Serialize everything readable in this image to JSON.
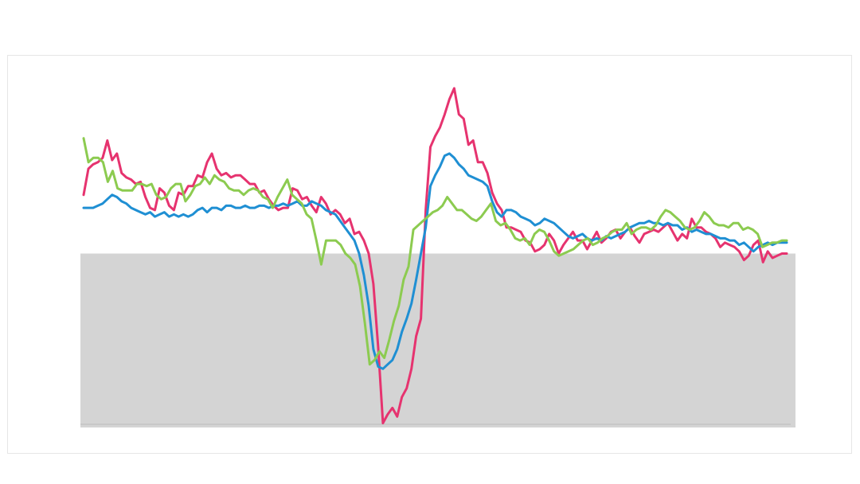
{
  "chart_data": {
    "type": "line",
    "title": "",
    "xlabel": "",
    "ylabel": "",
    "grid": false,
    "legend": "none",
    "band": {
      "from": -4,
      "to": 0,
      "color": "#d4d4d4",
      "baseline_color": "#bdbdbd"
    },
    "ylim": [
      -4,
      4
    ],
    "series": [
      {
        "color": "#e6336f",
        "values": [
          1.35,
          1.95,
          2.05,
          2.1,
          2.2,
          2.6,
          2.15,
          2.3,
          1.85,
          1.75,
          1.7,
          1.6,
          1.65,
          1.3,
          1.05,
          1.0,
          1.5,
          1.4,
          1.1,
          1.0,
          1.4,
          1.35,
          1.55,
          1.55,
          1.8,
          1.75,
          2.1,
          2.3,
          1.95,
          1.8,
          1.85,
          1.75,
          1.8,
          1.8,
          1.7,
          1.6,
          1.6,
          1.4,
          1.45,
          1.25,
          1.1,
          1.0,
          1.05,
          1.05,
          1.5,
          1.45,
          1.25,
          1.3,
          1.1,
          0.95,
          1.3,
          1.15,
          0.9,
          1.0,
          0.9,
          0.7,
          0.8,
          0.45,
          0.5,
          0.3,
          0.0,
          -0.7,
          -2.15,
          -3.9,
          -3.7,
          -3.55,
          -3.75,
          -3.3,
          -3.1,
          -2.65,
          -1.9,
          -1.5,
          1.0,
          2.45,
          2.7,
          2.9,
          3.2,
          3.55,
          3.8,
          3.2,
          3.1,
          2.5,
          2.6,
          2.1,
          2.1,
          1.85,
          1.4,
          1.15,
          1.0,
          0.6,
          0.6,
          0.55,
          0.5,
          0.3,
          0.25,
          0.05,
          0.1,
          0.2,
          0.45,
          0.3,
          0.0,
          0.2,
          0.35,
          0.5,
          0.3,
          0.3,
          0.1,
          0.3,
          0.5,
          0.25,
          0.35,
          0.5,
          0.55,
          0.35,
          0.5,
          0.6,
          0.4,
          0.25,
          0.45,
          0.5,
          0.55,
          0.5,
          0.6,
          0.7,
          0.5,
          0.3,
          0.45,
          0.35,
          0.8,
          0.6,
          0.6,
          0.5,
          0.45,
          0.35,
          0.15,
          0.25,
          0.2,
          0.15,
          0.05,
          -0.15,
          -0.05,
          0.2,
          0.3,
          -0.2,
          0.05,
          -0.1,
          -0.05,
          0.0,
          0.0
        ]
      },
      {
        "color": "#1f8fd3",
        "values": [
          1.05,
          1.05,
          1.05,
          1.1,
          1.15,
          1.25,
          1.35,
          1.3,
          1.2,
          1.15,
          1.05,
          1.0,
          0.95,
          0.9,
          0.95,
          0.85,
          0.9,
          0.95,
          0.85,
          0.9,
          0.85,
          0.9,
          0.85,
          0.9,
          1.0,
          1.05,
          0.95,
          1.05,
          1.05,
          1.0,
          1.1,
          1.1,
          1.05,
          1.05,
          1.1,
          1.05,
          1.05,
          1.1,
          1.1,
          1.05,
          1.1,
          1.1,
          1.15,
          1.1,
          1.15,
          1.2,
          1.1,
          1.1,
          1.2,
          1.15,
          1.1,
          1.0,
          0.95,
          0.9,
          0.75,
          0.6,
          0.45,
          0.3,
          0.0,
          -0.5,
          -1.2,
          -2.2,
          -2.6,
          -2.65,
          -2.55,
          -2.45,
          -2.2,
          -1.8,
          -1.5,
          -1.15,
          -0.6,
          0.0,
          0.6,
          1.55,
          1.8,
          2.0,
          2.25,
          2.3,
          2.2,
          2.05,
          1.95,
          1.8,
          1.75,
          1.7,
          1.65,
          1.55,
          1.2,
          0.95,
          0.85,
          1.0,
          1.0,
          0.95,
          0.85,
          0.8,
          0.75,
          0.65,
          0.7,
          0.8,
          0.75,
          0.7,
          0.6,
          0.5,
          0.4,
          0.35,
          0.4,
          0.45,
          0.35,
          0.3,
          0.35,
          0.3,
          0.4,
          0.35,
          0.4,
          0.45,
          0.5,
          0.6,
          0.65,
          0.7,
          0.7,
          0.75,
          0.7,
          0.7,
          0.65,
          0.7,
          0.65,
          0.65,
          0.55,
          0.6,
          0.5,
          0.55,
          0.5,
          0.45,
          0.45,
          0.4,
          0.35,
          0.35,
          0.3,
          0.3,
          0.2,
          0.25,
          0.15,
          0.05,
          0.15,
          0.2,
          0.25,
          0.2,
          0.25,
          0.25,
          0.25
        ]
      },
      {
        "color": "#8ccb50",
        "values": [
          2.65,
          2.1,
          2.2,
          2.2,
          2.1,
          1.65,
          1.9,
          1.5,
          1.45,
          1.45,
          1.45,
          1.6,
          1.6,
          1.55,
          1.6,
          1.35,
          1.25,
          1.3,
          1.5,
          1.6,
          1.6,
          1.2,
          1.35,
          1.55,
          1.6,
          1.75,
          1.6,
          1.8,
          1.7,
          1.65,
          1.5,
          1.45,
          1.45,
          1.35,
          1.45,
          1.5,
          1.45,
          1.3,
          1.25,
          1.05,
          1.3,
          1.5,
          1.7,
          1.35,
          1.25,
          1.15,
          0.9,
          0.8,
          0.3,
          -0.25,
          0.3,
          0.3,
          0.3,
          0.2,
          0.0,
          -0.1,
          -0.25,
          -0.75,
          -1.6,
          -2.55,
          -2.45,
          -2.25,
          -2.4,
          -2.0,
          -1.55,
          -1.2,
          -0.6,
          -0.3,
          0.55,
          0.65,
          0.75,
          0.85,
          0.95,
          1.0,
          1.1,
          1.3,
          1.15,
          1.0,
          1.0,
          0.9,
          0.8,
          0.75,
          0.85,
          1.0,
          1.15,
          0.75,
          0.65,
          0.7,
          0.55,
          0.35,
          0.3,
          0.35,
          0.2,
          0.45,
          0.55,
          0.5,
          0.3,
          0.05,
          -0.05,
          0.0,
          0.05,
          0.1,
          0.2,
          0.3,
          0.35,
          0.2,
          0.25,
          0.35,
          0.4,
          0.5,
          0.55,
          0.55,
          0.7,
          0.45,
          0.55,
          0.6,
          0.6,
          0.55,
          0.65,
          0.85,
          1.0,
          0.95,
          0.85,
          0.75,
          0.6,
          0.55,
          0.6,
          0.75,
          0.95,
          0.85,
          0.7,
          0.65,
          0.65,
          0.6,
          0.7,
          0.7,
          0.55,
          0.6,
          0.55,
          0.45,
          0.15,
          0.2,
          0.25,
          0.25,
          0.3,
          0.3
        ]
      }
    ]
  }
}
